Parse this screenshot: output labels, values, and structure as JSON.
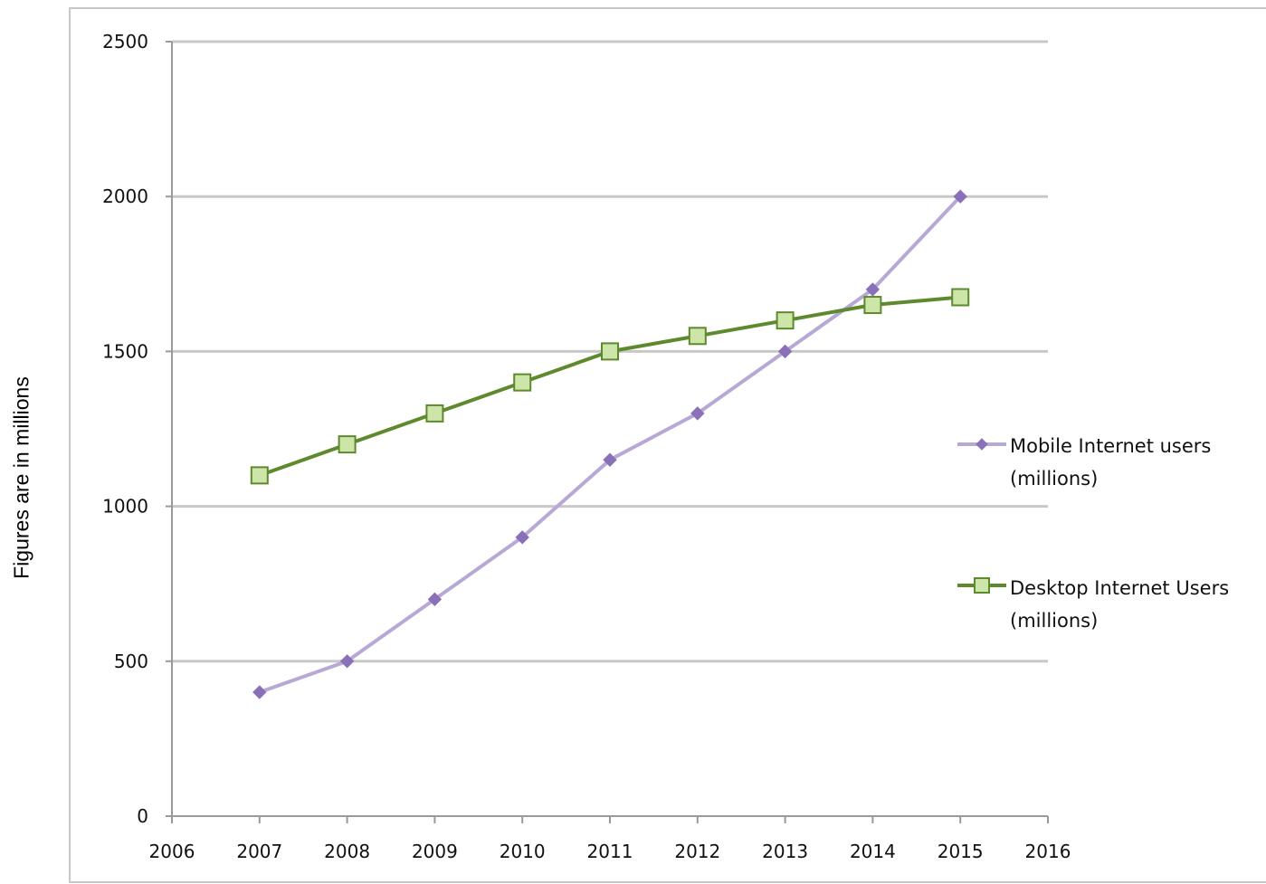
{
  "chart_data": {
    "type": "line",
    "title": "",
    "ylabel": "Figures are in millions",
    "xlabel": "",
    "xlim": [
      2006,
      2016
    ],
    "ylim": [
      0,
      2500
    ],
    "x_ticks": [
      "2006",
      "2007",
      "2008",
      "2009",
      "2010",
      "2011",
      "2012",
      "2013",
      "2014",
      "2015",
      "2016"
    ],
    "y_ticks": [
      "0",
      "500",
      "1000",
      "1500",
      "2000",
      "2500"
    ],
    "grid": "horizontal",
    "legend_position": "right",
    "x": [
      2007,
      2008,
      2009,
      2010,
      2011,
      2012,
      2013,
      2014,
      2015
    ],
    "series": [
      {
        "name": "Mobile Internet users (millions)",
        "legend_lines": [
          "Mobile Internet users",
          "(millions)"
        ],
        "color": "#b8a8d6",
        "marker_color": "#8a70b8",
        "marker": "diamond",
        "values": [
          400,
          500,
          700,
          900,
          1150,
          1300,
          1500,
          1700,
          2000
        ]
      },
      {
        "name": "Desktop Internet Users (millions)",
        "legend_lines": [
          "Desktop Internet Users",
          "(millions)"
        ],
        "color": "#5e8a2e",
        "marker_color": "#cde5a8",
        "marker": "square",
        "values": [
          1100,
          1200,
          1300,
          1400,
          1500,
          1550,
          1600,
          1650,
          1675
        ]
      }
    ]
  }
}
